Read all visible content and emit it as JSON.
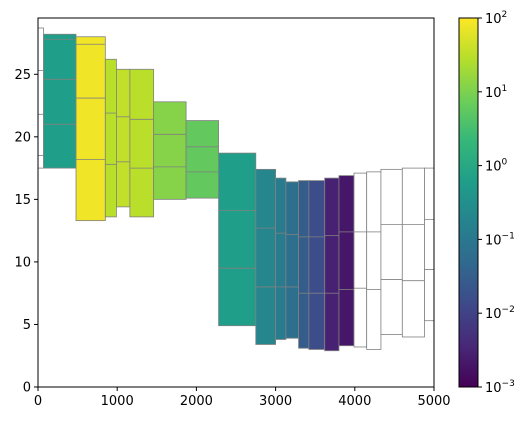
{
  "chart_data": {
    "type": "heatmap",
    "title": "",
    "xlabel": "",
    "ylabel": "",
    "xlim": [
      0,
      5000
    ],
    "ylim": [
      0,
      29.5
    ],
    "xticks": [
      0,
      1000,
      2000,
      3000,
      4000,
      5000
    ],
    "yticks": [
      0,
      5,
      10,
      15,
      20,
      25
    ],
    "colormap": "viridis",
    "color_scale": "log",
    "colorbar": {
      "vmin": 0.001,
      "vmax": 100,
      "ticks": [
        {
          "base": "10",
          "exp": "−3"
        },
        {
          "base": "10",
          "exp": "−2"
        },
        {
          "base": "10",
          "exp": "−1"
        },
        {
          "base": "10",
          "exp": "0"
        },
        {
          "base": "10",
          "exp": "1"
        },
        {
          "base": "10",
          "exp": "2"
        }
      ]
    },
    "empty_color": "#ffffff",
    "edge_color": "#808080",
    "columns": [
      {
        "x0": -50,
        "x1": 70,
        "y0": 17.5,
        "y1": 28.7,
        "value": null,
        "splits": [
          18.5,
          21.8,
          25.3
        ]
      },
      {
        "x0": 70,
        "x1": 480,
        "y0": 17.5,
        "y1": 28.2,
        "value": 0.6,
        "splits": [
          21.0,
          24.6,
          27.8
        ]
      },
      {
        "x0": 480,
        "x1": 850,
        "y0": 13.3,
        "y1": 28.0,
        "value": 80,
        "splits": [
          18.2,
          23.1,
          27.4
        ]
      },
      {
        "x0": 850,
        "x1": 990,
        "y0": 13.6,
        "y1": 26.2,
        "value": 30,
        "splits": [
          17.8,
          21.9
        ]
      },
      {
        "x0": 990,
        "x1": 1160,
        "y0": 14.4,
        "y1": 25.4,
        "value": 35,
        "splits": [
          18.0,
          21.6
        ]
      },
      {
        "x0": 1160,
        "x1": 1460,
        "y0": 13.6,
        "y1": 25.4,
        "value": 30,
        "splits": [
          17.5,
          21.4
        ]
      },
      {
        "x0": 1460,
        "x1": 1870,
        "y0": 15.0,
        "y1": 22.8,
        "value": 12,
        "splits": [
          17.6,
          20.2
        ]
      },
      {
        "x0": 1870,
        "x1": 2280,
        "y0": 15.1,
        "y1": 21.3,
        "value": 6,
        "splits": [
          17.2,
          19.2
        ]
      },
      {
        "x0": 2280,
        "x1": 2750,
        "y0": 4.9,
        "y1": 18.7,
        "value": 0.6,
        "splits": [
          9.5,
          14.1
        ]
      },
      {
        "x0": 2750,
        "x1": 3000,
        "y0": 3.4,
        "y1": 17.4,
        "value": 0.2,
        "splits": [
          8.0,
          12.7
        ]
      },
      {
        "x0": 3000,
        "x1": 3130,
        "y0": 3.8,
        "y1": 16.7,
        "value": 0.12,
        "splits": [
          8.0,
          12.3
        ]
      },
      {
        "x0": 3130,
        "x1": 3290,
        "y0": 3.9,
        "y1": 16.4,
        "value": 0.07,
        "splits": [
          8.0,
          12.2
        ]
      },
      {
        "x0": 3290,
        "x1": 3420,
        "y0": 3.1,
        "y1": 16.5,
        "value": 0.03,
        "splits": [
          7.5,
          12.0
        ]
      },
      {
        "x0": 3420,
        "x1": 3620,
        "y0": 3.0,
        "y1": 16.5,
        "value": 0.015,
        "splits": [
          7.5,
          12.0
        ]
      },
      {
        "x0": 3620,
        "x1": 3800,
        "y0": 2.9,
        "y1": 16.7,
        "value": 0.003,
        "splits": [
          7.5,
          12.1
        ]
      },
      {
        "x0": 3800,
        "x1": 3990,
        "y0": 3.3,
        "y1": 16.9,
        "value": 0.002,
        "splits": [
          7.8,
          12.4
        ]
      },
      {
        "x0": 3990,
        "x1": 4150,
        "y0": 3.2,
        "y1": 17.1,
        "value": null,
        "splits": [
          7.9,
          12.4
        ]
      },
      {
        "x0": 4150,
        "x1": 4330,
        "y0": 3.0,
        "y1": 17.2,
        "value": null,
        "splits": [
          7.8,
          12.4
        ]
      },
      {
        "x0": 4330,
        "x1": 4600,
        "y0": 4.2,
        "y1": 17.4,
        "value": null,
        "splits": [
          8.6,
          13.0
        ]
      },
      {
        "x0": 4600,
        "x1": 4880,
        "y0": 4.0,
        "y1": 17.5,
        "value": null,
        "splits": [
          8.5,
          13.0
        ]
      },
      {
        "x0": 4880,
        "x1": 5200,
        "y0": 5.3,
        "y1": 17.5,
        "value": null,
        "splits": [
          9.4,
          13.4
        ]
      }
    ]
  }
}
